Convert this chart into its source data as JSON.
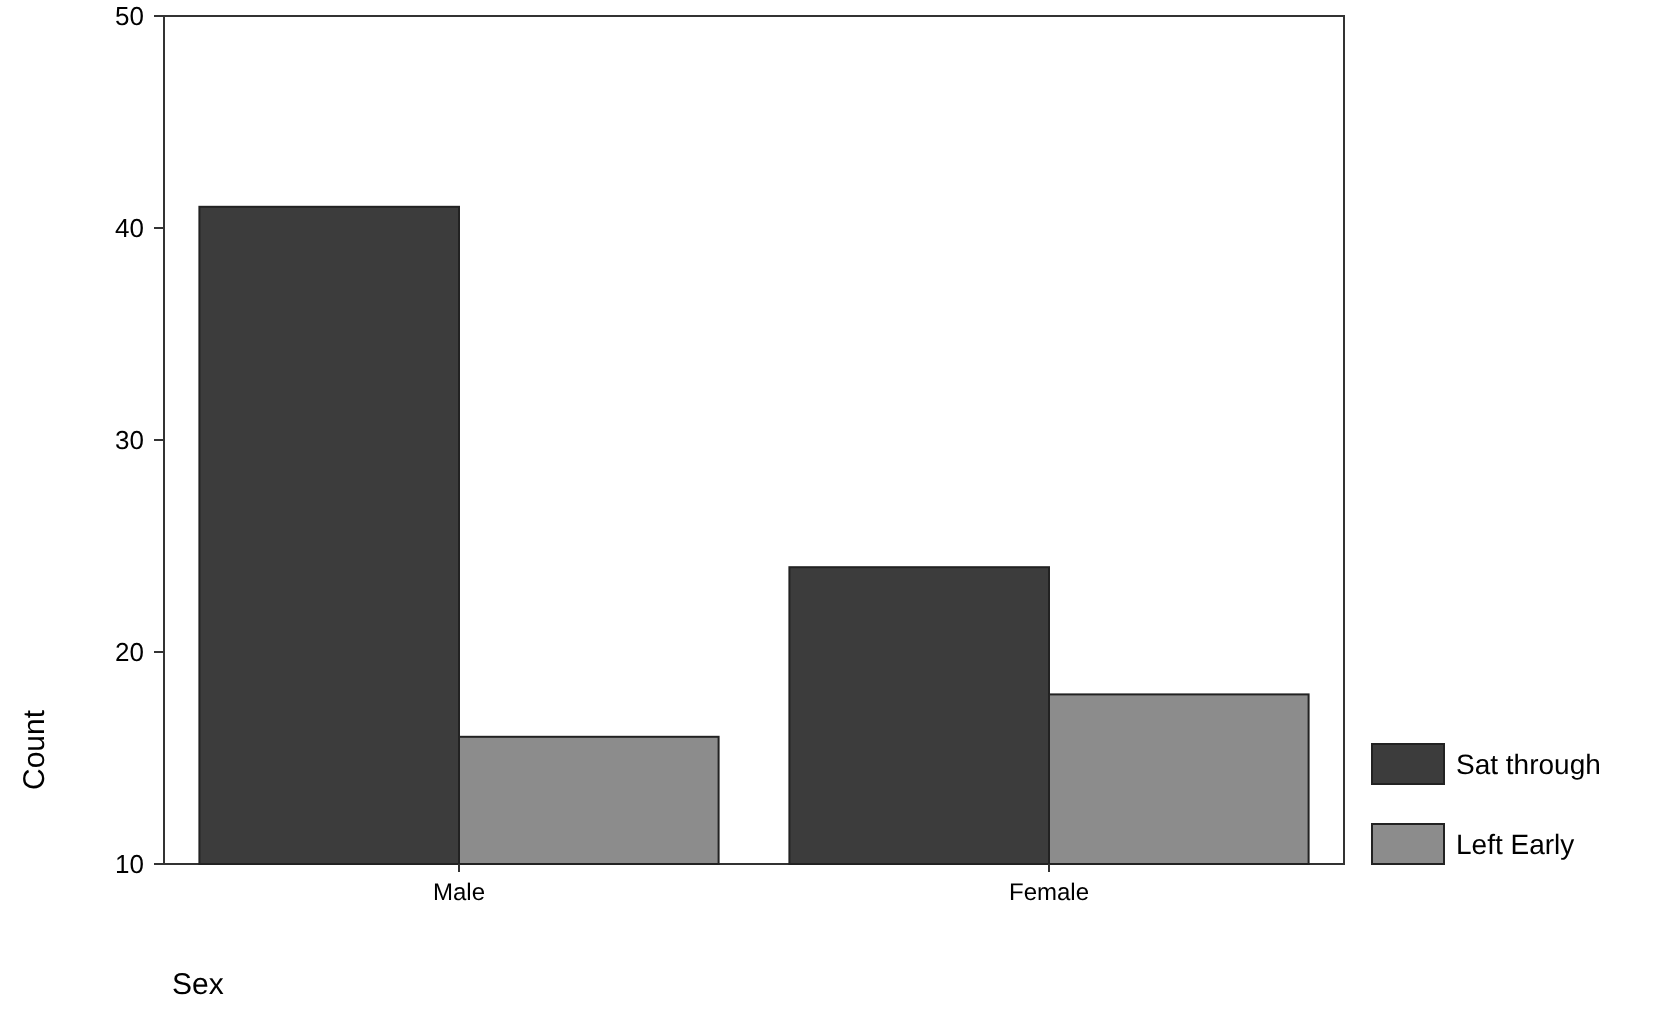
{
  "chart_data": {
    "type": "bar",
    "xlabel": "Sex",
    "ylabel": "Count",
    "categories": [
      "Male",
      "Female"
    ],
    "series": [
      {
        "name": "Sat through",
        "color": "#3c3c3c",
        "values": [
          41,
          24
        ]
      },
      {
        "name": "Left Early",
        "color": "#8c8c8c",
        "values": [
          16,
          18
        ]
      }
    ],
    "ylim": [
      10,
      50
    ],
    "yticks": [
      10,
      20,
      30,
      40,
      50
    ],
    "grid": false,
    "legend": "bottom right"
  }
}
